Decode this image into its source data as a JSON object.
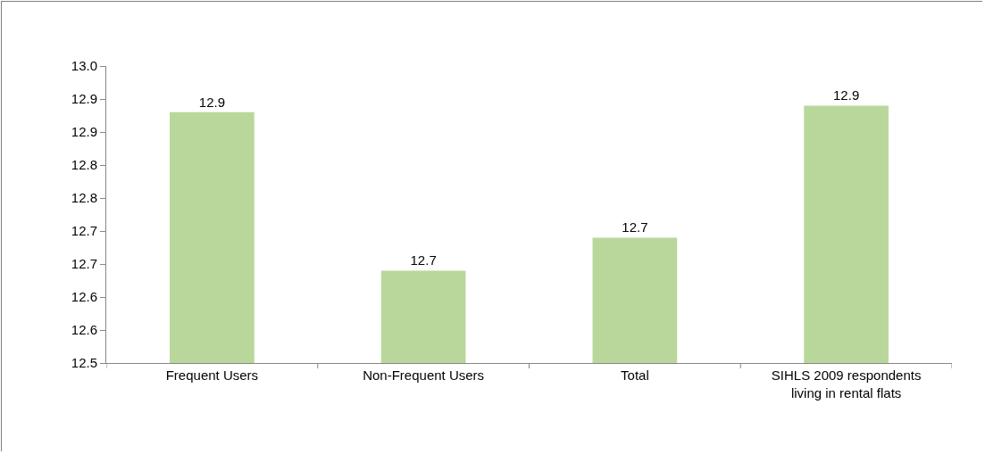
{
  "chart_data": {
    "type": "bar",
    "categories": [
      "Frequent Users",
      "Non-Frequent Users",
      "Total",
      "SIHLS 2009 respondents living in rental flats"
    ],
    "values": [
      12.93,
      12.69,
      12.74,
      12.94
    ],
    "value_labels": [
      "12.9",
      "12.7",
      "12.7",
      "12.9"
    ],
    "color": "#b9d79b",
    "ylim": [
      12.55,
      13.0
    ],
    "yticks": [
      {
        "value": 12.55,
        "label": "12.5"
      },
      {
        "value": 12.6,
        "label": "12.6"
      },
      {
        "value": 12.65,
        "label": "12.6"
      },
      {
        "value": 12.7,
        "label": "12.7"
      },
      {
        "value": 12.75,
        "label": "12.7"
      },
      {
        "value": 12.8,
        "label": "12.8"
      },
      {
        "value": 12.85,
        "label": "12.8"
      },
      {
        "value": 12.9,
        "label": "12.9"
      },
      {
        "value": 12.95,
        "label": "12.9"
      },
      {
        "value": 13.0,
        "label": "13.0"
      }
    ],
    "grid": false
  }
}
